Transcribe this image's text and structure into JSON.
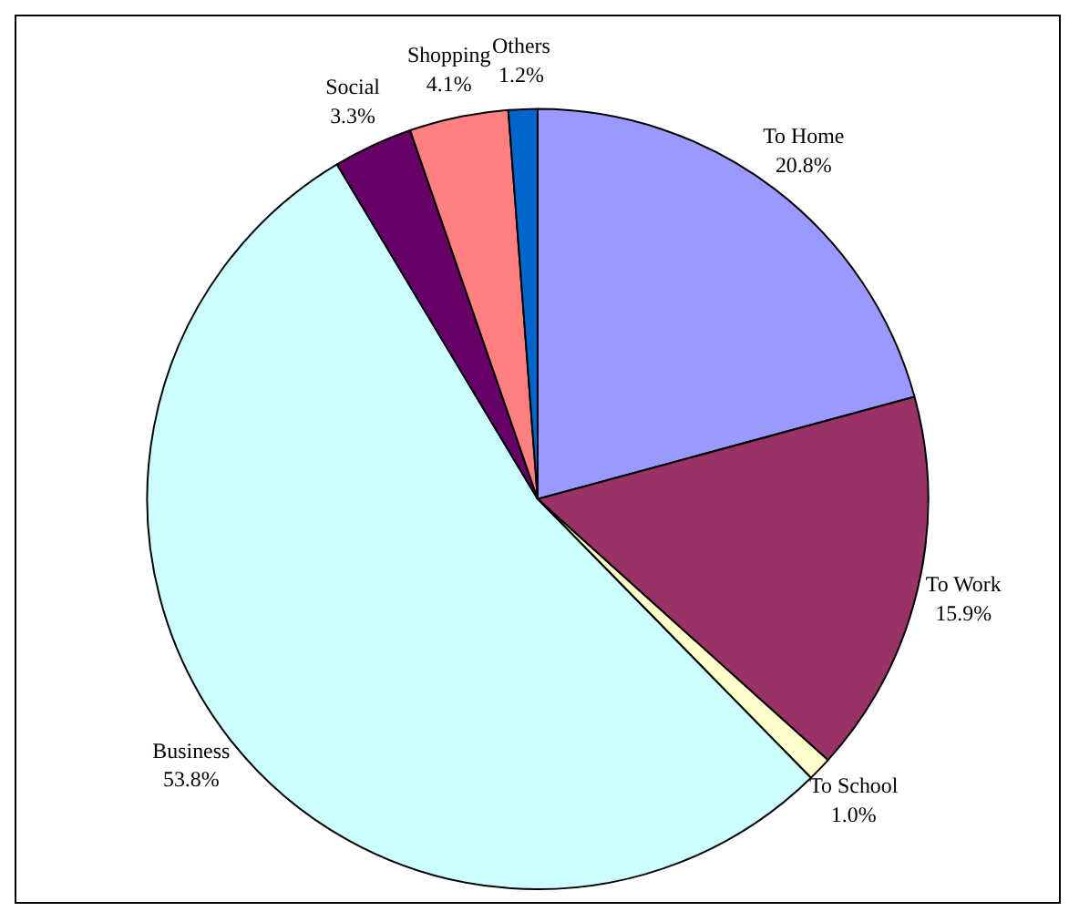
{
  "chart_data": {
    "type": "pie",
    "categories": [
      "To Home",
      "To Work",
      "To School",
      "Business",
      "Social",
      "Shopping",
      "Others"
    ],
    "values": [
      20.8,
      15.9,
      1.0,
      53.8,
      3.3,
      4.1,
      1.2
    ],
    "value_labels": [
      "20.8%",
      "15.9%",
      "1.0%",
      "53.8%",
      "3.3%",
      "4.1%",
      "1.2%"
    ],
    "colors": [
      "#9999ff",
      "#993366",
      "#ffffcc",
      "#ccffff",
      "#660066",
      "#ff8080",
      "#0066cc"
    ],
    "legend": false
  }
}
